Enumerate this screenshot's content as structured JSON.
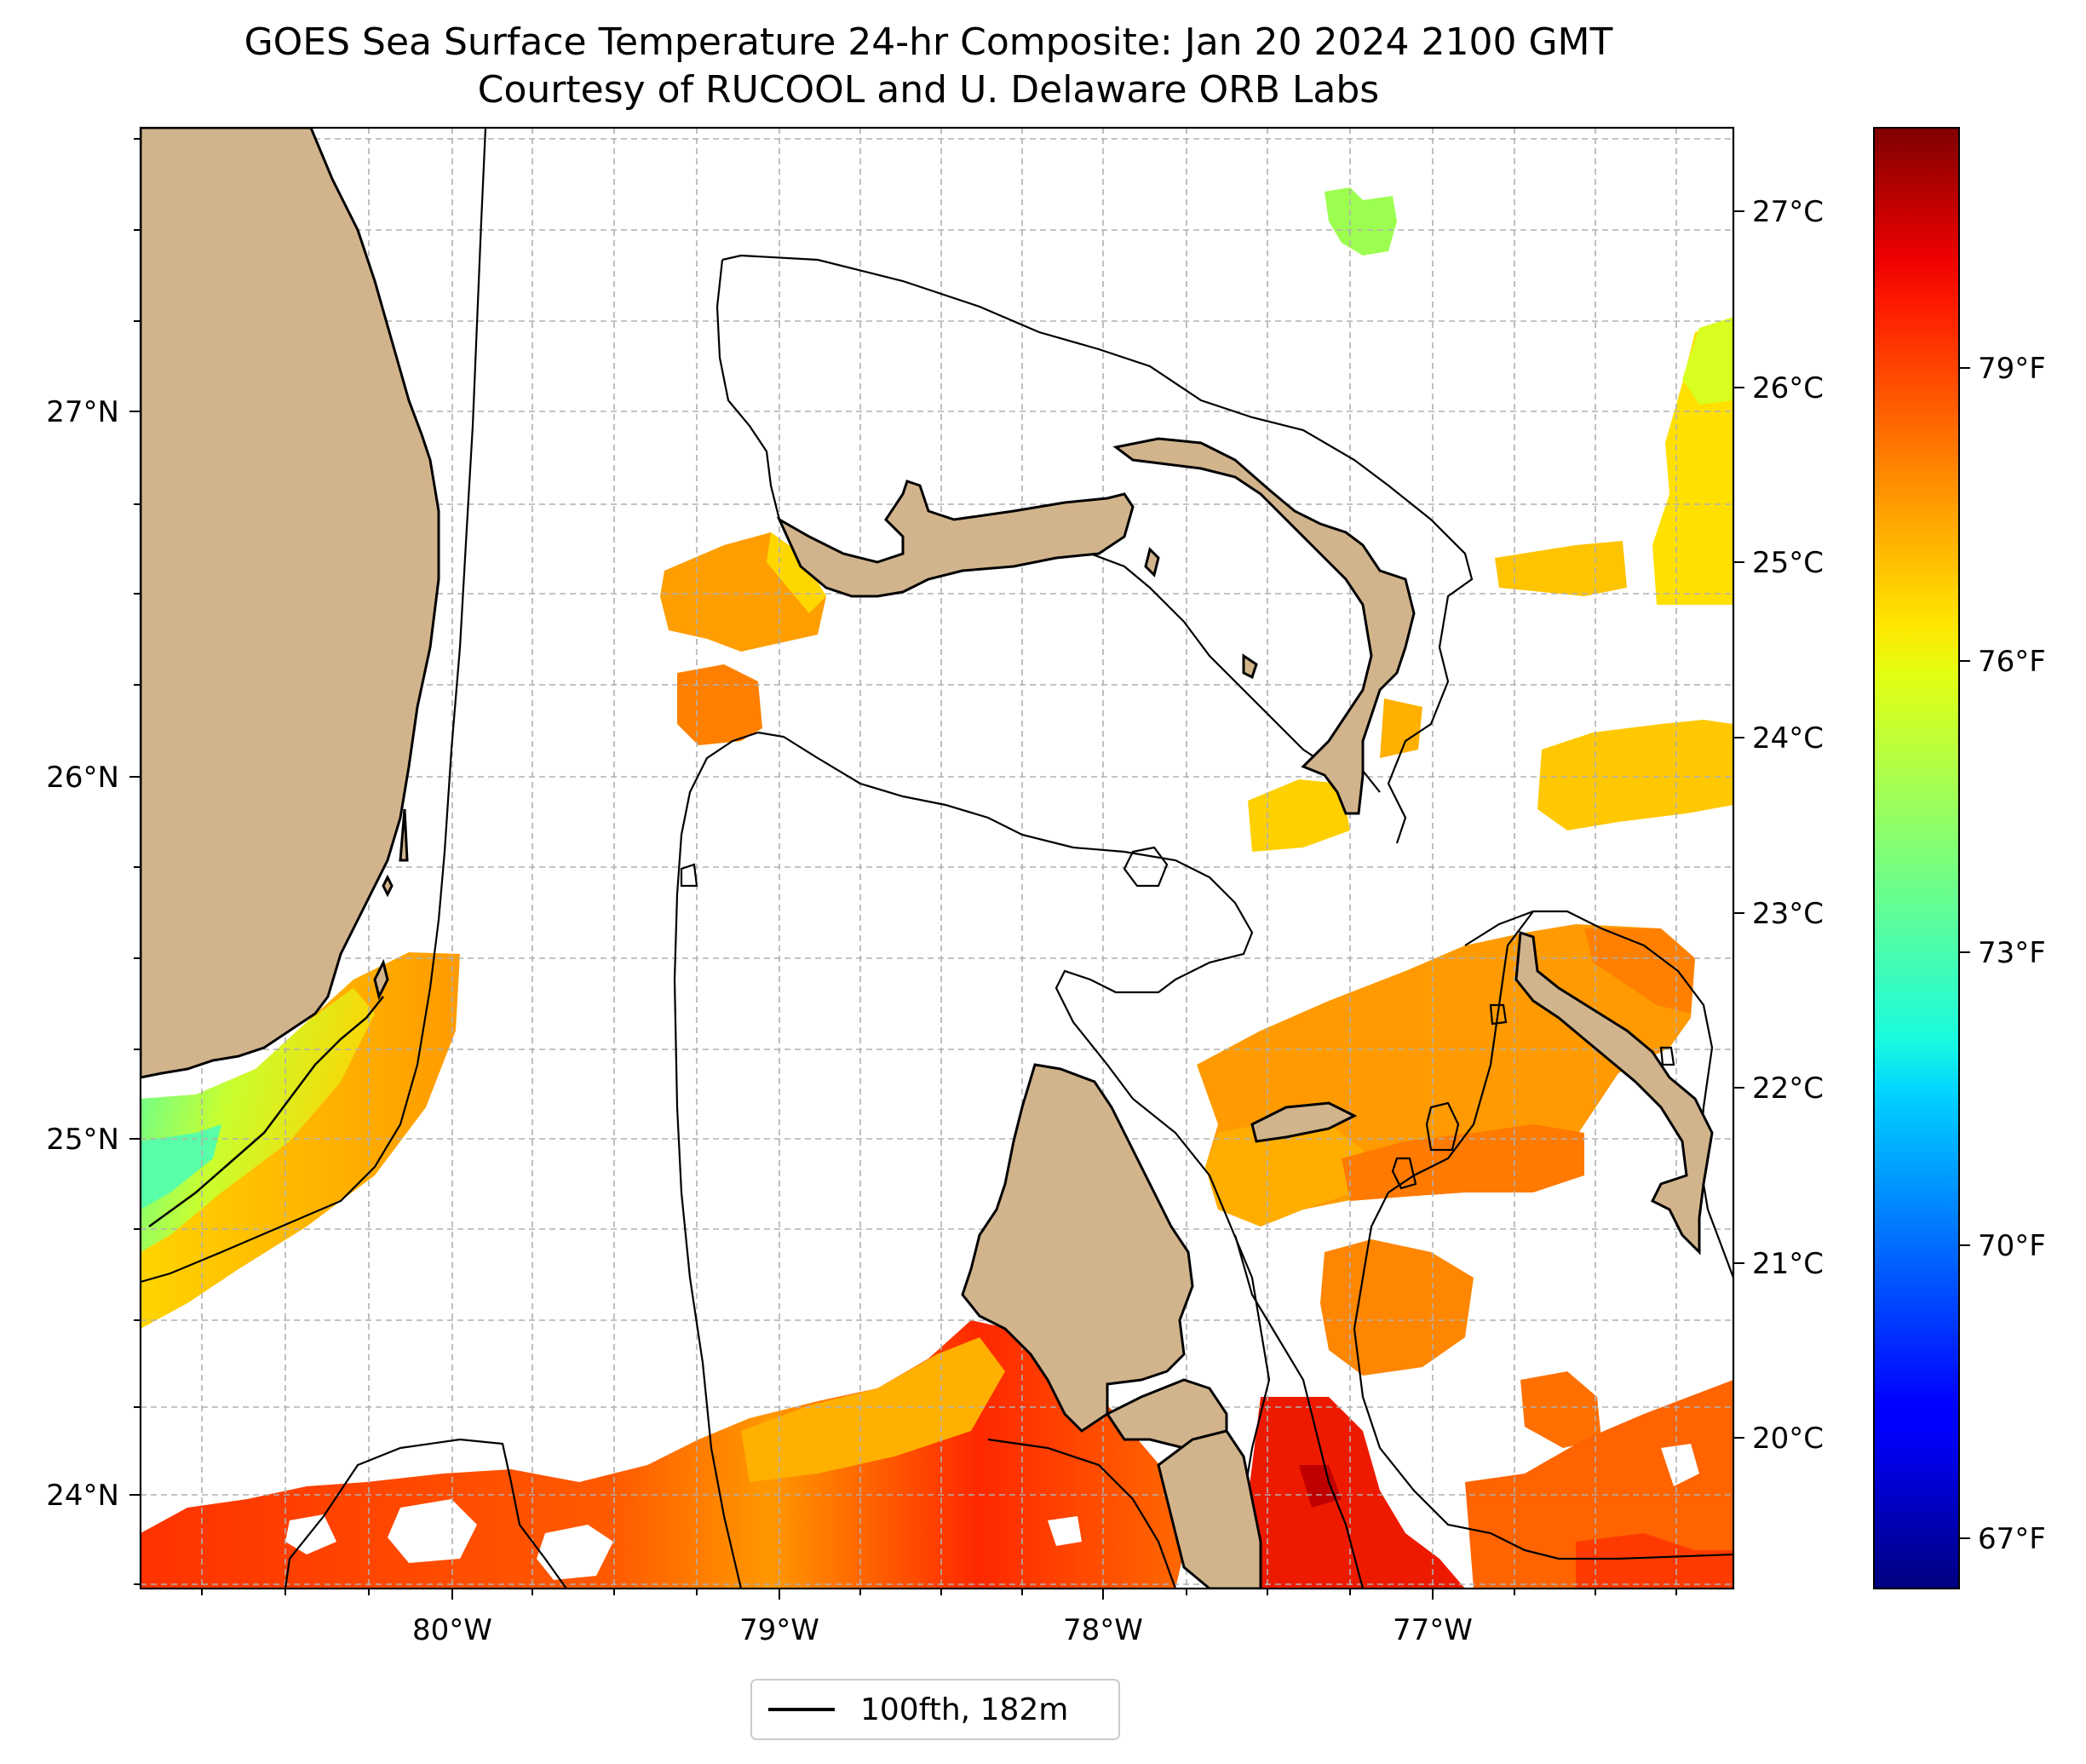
{
  "map": {
    "title_line1": "GOES Sea Surface Temperature 24-hr Composite: Jan 20 2024 2100 GMT",
    "title_line2": "Courtesy of RUCOOL and U. Delaware ORB Labs",
    "lon_ticks": [
      "80°W",
      "79°W",
      "78°W",
      "77°W"
    ],
    "lat_ticks": [
      "27°N",
      "26°N",
      "25°N",
      "24°N"
    ],
    "legend_label": "100fth, 182m",
    "land_color": "#d2b48c"
  },
  "colorbar": {
    "colormap": "jet",
    "celsius_ticks": [
      "27°C",
      "26°C",
      "25°C",
      "24°C",
      "23°C",
      "22°C",
      "21°C",
      "20°C"
    ],
    "fahrenheit_ticks": [
      "79°F",
      "76°F",
      "73°F",
      "70°F",
      "67°F"
    ]
  }
}
